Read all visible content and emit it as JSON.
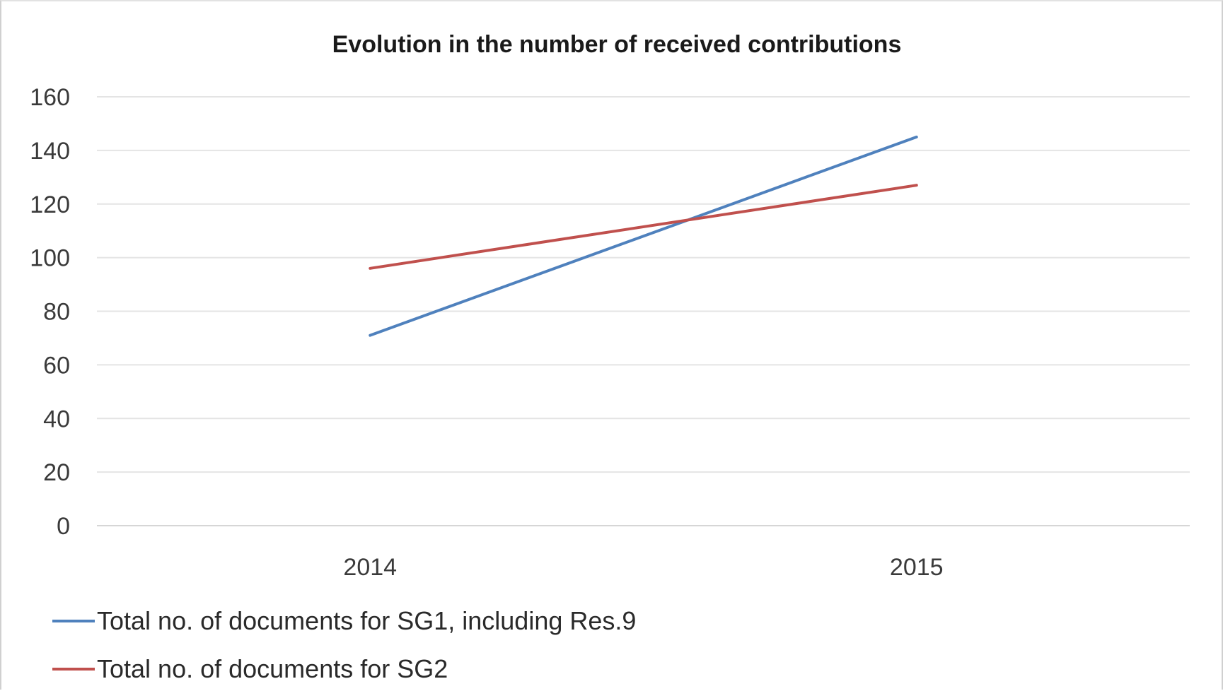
{
  "chart_data": {
    "type": "line",
    "title": "Evolution in the number of received contributions",
    "xlabel": "",
    "ylabel": "",
    "categories": [
      "2014",
      "2015"
    ],
    "ylim": [
      0,
      160
    ],
    "yticks": [
      "0",
      "20",
      "40",
      "60",
      "80",
      "100",
      "120",
      "140",
      "160"
    ],
    "grid": true,
    "legend_position": "bottom-left",
    "series": [
      {
        "name": "Total no. of documents for SG1, including Res.9",
        "values": [
          71,
          145
        ],
        "color": "#4f81bd"
      },
      {
        "name": "Total no. of documents for SG2",
        "values": [
          96,
          127
        ],
        "color": "#c0504d"
      }
    ]
  }
}
